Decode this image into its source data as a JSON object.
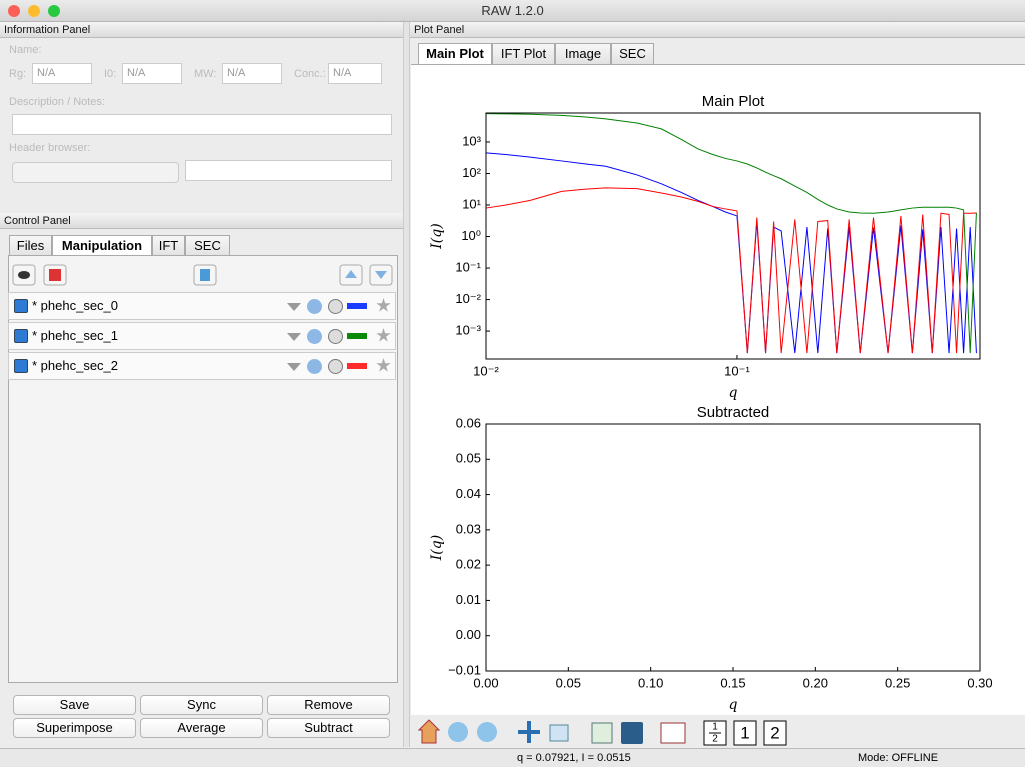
{
  "window": {
    "title": "RAW 1.2.0"
  },
  "info_panel": {
    "title": "Information Panel",
    "name_label": "Name:",
    "fields": [
      {
        "label": "Rg:",
        "value": "N/A"
      },
      {
        "label": "I0:",
        "value": "N/A"
      },
      {
        "label": "MW:",
        "value": "N/A"
      },
      {
        "label": "Conc.:",
        "value": "N/A"
      }
    ],
    "description_label": "Description / Notes:",
    "header_label": "Header browser:"
  },
  "control_panel": {
    "title": "Control Panel",
    "tabs": [
      "Files",
      "Manipulation",
      "IFT",
      "SEC"
    ],
    "items": [
      {
        "name": "* phehc_sec_0",
        "color": "#1a3cff"
      },
      {
        "name": "* phehc_sec_1",
        "color": "#0a8a0a"
      },
      {
        "name": "* phehc_sec_2",
        "color": "#ff2a2a"
      }
    ],
    "buttons": [
      "Save",
      "Sync",
      "Remove",
      "Superimpose",
      "Average",
      "Subtract"
    ]
  },
  "plot_panel": {
    "title": "Plot Panel",
    "tabs": [
      "Main Plot",
      "IFT Plot",
      "Image",
      "SEC"
    ]
  },
  "toolbar": {
    "split_icon": {
      "top": "1",
      "bottom": "2"
    },
    "page_buttons": [
      "1",
      "2"
    ]
  },
  "status_bar": {
    "coords": "q = 0.07921, I = 0.0515",
    "mode": "Mode: OFFLINE"
  },
  "chart_data": [
    {
      "type": "line",
      "title": "Main Plot",
      "x_label": "q",
      "y_label": "I(q)",
      "xscale": "log",
      "yscale": "log",
      "xlim": [
        0.01,
        0.93
      ],
      "ylim": [
        0.00013,
        8300
      ],
      "xticks": [
        {
          "value": 0.01,
          "label": "10⁻²"
        },
        {
          "value": 0.1,
          "label": "10⁻¹"
        }
      ],
      "yticks": [
        {
          "value": 0.001,
          "label": "10⁻³"
        },
        {
          "value": 0.01,
          "label": "10⁻²"
        },
        {
          "value": 0.1,
          "label": "10⁻¹"
        },
        {
          "value": 1,
          "label": "10⁰"
        },
        {
          "value": 10,
          "label": "10¹"
        },
        {
          "value": 100,
          "label": "10²"
        },
        {
          "value": 1000,
          "label": "10³"
        }
      ],
      "x": [
        0.01,
        0.012,
        0.015,
        0.02,
        0.025,
        0.03,
        0.04,
        0.05,
        0.06,
        0.07,
        0.08,
        0.09,
        0.1,
        0.11,
        0.12,
        0.13,
        0.14,
        0.15,
        0.17,
        0.19,
        0.21,
        0.23,
        0.25,
        0.28,
        0.31,
        0.35,
        0.4,
        0.45,
        0.5,
        0.55,
        0.6,
        0.65,
        0.7,
        0.75,
        0.8,
        0.85,
        0.9
      ],
      "series": [
        {
          "color": "#0000ff",
          "values": [
            450,
            400,
            330,
            250,
            200,
            170,
            90,
            47,
            25,
            14,
            9,
            6,
            4.5,
            0.0002,
            3,
            0.0002,
            2,
            1.5,
            0.0002,
            2,
            0.0002,
            1.8,
            0.0002,
            2,
            0.0002,
            1.9,
            0.0002,
            2.2,
            0.0002,
            1.7,
            0.0002,
            2,
            0.0002,
            1.8,
            0.0002,
            2,
            0.0002
          ]
        },
        {
          "color": "#008000",
          "values": [
            7900,
            7800,
            7600,
            7000,
            6200,
            5400,
            4000,
            2600,
            1200,
            600,
            400,
            300,
            250,
            200,
            150,
            110,
            85,
            68,
            40,
            25,
            15,
            10,
            7.5,
            6,
            5.6,
            5.5,
            6,
            7,
            8,
            8.5,
            8.5,
            8.5,
            8.5,
            8,
            7,
            0.0002,
            5.7
          ]
        },
        {
          "color": "#ff0000",
          "values": [
            8,
            10,
            14,
            27,
            32,
            35,
            33,
            24,
            18,
            13,
            9,
            7.5,
            6.5,
            0.0002,
            4,
            0.0002,
            3,
            0.0002,
            3.5,
            0.0002,
            3,
            3.2,
            0.0002,
            3.5,
            0.0002,
            4,
            0.0002,
            4.5,
            0.0002,
            5,
            0.0002,
            5.5,
            5,
            0.0002,
            5.5,
            5.5,
            5.6
          ]
        }
      ]
    },
    {
      "type": "line",
      "title": "Subtracted",
      "x_label": "q",
      "y_label": "I(q)",
      "xlim": [
        0,
        0.3
      ],
      "ylim": [
        -0.01,
        0.06
      ],
      "xticks": [
        {
          "value": 0,
          "label": "0.00"
        },
        0.05,
        {
          "value": 0.1,
          "label": "0.10"
        },
        0.15,
        {
          "value": 0.2,
          "label": "0.20"
        },
        0.25,
        {
          "value": 0.3,
          "label": "0.30"
        }
      ],
      "yticks": [
        {
          "value": -0.01,
          "label": "−0.01"
        },
        {
          "value": 0,
          "label": "0.00"
        },
        0.01,
        0.02,
        0.03,
        0.04,
        0.05,
        0.06
      ],
      "x": [],
      "series": []
    }
  ]
}
